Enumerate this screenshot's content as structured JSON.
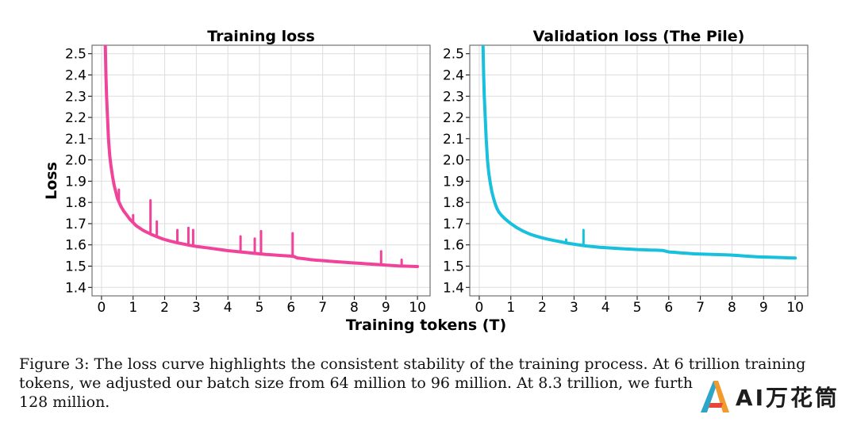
{
  "chart_data": [
    {
      "type": "line",
      "title": "Training loss",
      "ylabel": "Loss",
      "xlabel": "Training tokens (T)",
      "xlim": [
        -0.3,
        10.4
      ],
      "ylim": [
        1.36,
        2.54
      ],
      "xticks": [
        "0",
        "1",
        "2",
        "3",
        "4",
        "5",
        "6",
        "7",
        "8",
        "9",
        "10"
      ],
      "yticks": [
        "1.4",
        "1.5",
        "1.6",
        "1.7",
        "1.8",
        "1.9",
        "2.0",
        "2.1",
        "2.2",
        "2.3",
        "2.4",
        "2.5"
      ],
      "grid": true,
      "series": [
        {
          "color": "#f0449b",
          "x": [
            0.12,
            0.14,
            0.16,
            0.19,
            0.22,
            0.26,
            0.3,
            0.35,
            0.4,
            0.45,
            0.5,
            0.56,
            0.62,
            0.7,
            0.8,
            0.9,
            1.0,
            1.1,
            1.2,
            1.3,
            1.4,
            1.5,
            1.6,
            1.7,
            1.8,
            1.9,
            2.0,
            2.2,
            2.4,
            2.6,
            2.8,
            3.0,
            3.2,
            3.4,
            3.6,
            3.8,
            4.0,
            4.2,
            4.4,
            4.6,
            4.8,
            5.0,
            5.2,
            5.4,
            5.6,
            5.8,
            6.0,
            6.1,
            6.2,
            6.4,
            6.6,
            6.8,
            7.0,
            7.2,
            7.4,
            7.6,
            7.8,
            8.0,
            8.2,
            8.4,
            8.6,
            8.8,
            9.0,
            9.2,
            9.4,
            9.6,
            9.8,
            10.0
          ],
          "y": [
            2.54,
            2.4,
            2.3,
            2.2,
            2.1,
            2.02,
            1.97,
            1.92,
            1.88,
            1.85,
            1.82,
            1.8,
            1.78,
            1.76,
            1.74,
            1.72,
            1.705,
            1.69,
            1.68,
            1.67,
            1.662,
            1.655,
            1.648,
            1.642,
            1.636,
            1.63,
            1.625,
            1.617,
            1.61,
            1.604,
            1.598,
            1.593,
            1.589,
            1.585,
            1.581,
            1.577,
            1.573,
            1.57,
            1.567,
            1.564,
            1.561,
            1.558,
            1.555,
            1.553,
            1.551,
            1.549,
            1.547,
            1.545,
            1.538,
            1.535,
            1.531,
            1.528,
            1.526,
            1.523,
            1.521,
            1.519,
            1.517,
            1.515,
            1.513,
            1.511,
            1.509,
            1.507,
            1.505,
            1.503,
            1.501,
            1.5,
            1.499,
            1.498
          ]
        }
      ],
      "spikes": [
        {
          "x": 0.55,
          "y": 1.86
        },
        {
          "x": 1.0,
          "y": 1.74
        },
        {
          "x": 1.55,
          "y": 1.81
        },
        {
          "x": 1.75,
          "y": 1.71
        },
        {
          "x": 2.4,
          "y": 1.67
        },
        {
          "x": 2.75,
          "y": 1.68
        },
        {
          "x": 2.9,
          "y": 1.67
        },
        {
          "x": 4.4,
          "y": 1.64
        },
        {
          "x": 4.85,
          "y": 1.63
        },
        {
          "x": 5.05,
          "y": 1.665
        },
        {
          "x": 6.05,
          "y": 1.655
        },
        {
          "x": 8.85,
          "y": 1.57
        },
        {
          "x": 9.5,
          "y": 1.53
        }
      ]
    },
    {
      "type": "line",
      "title": "Validation loss (The Pile)",
      "xlim": [
        -0.3,
        10.4
      ],
      "ylim": [
        1.36,
        2.54
      ],
      "xticks": [
        "0",
        "1",
        "2",
        "3",
        "4",
        "5",
        "6",
        "7",
        "8",
        "9",
        "10"
      ],
      "yticks": [
        "1.4",
        "1.5",
        "1.6",
        "1.7",
        "1.8",
        "1.9",
        "2.0",
        "2.1",
        "2.2",
        "2.3",
        "2.4",
        "2.5"
      ],
      "grid": true,
      "series": [
        {
          "color": "#17c0dc",
          "x": [
            0.12,
            0.14,
            0.16,
            0.19,
            0.22,
            0.26,
            0.3,
            0.35,
            0.4,
            0.45,
            0.5,
            0.56,
            0.62,
            0.7,
            0.8,
            0.9,
            1.0,
            1.2,
            1.4,
            1.6,
            1.8,
            2.0,
            2.2,
            2.4,
            2.6,
            2.8,
            3.0,
            3.2,
            3.4,
            3.6,
            3.8,
            4.0,
            4.2,
            4.4,
            4.6,
            4.8,
            5.0,
            5.2,
            5.4,
            5.6,
            5.8,
            6.0,
            6.2,
            6.4,
            6.6,
            6.8,
            7.0,
            7.2,
            7.4,
            7.6,
            7.8,
            8.0,
            8.2,
            8.4,
            8.6,
            8.8,
            9.0,
            9.2,
            9.4,
            9.6,
            9.8,
            10.0
          ],
          "y": [
            2.54,
            2.4,
            2.3,
            2.2,
            2.1,
            2.0,
            1.94,
            1.89,
            1.85,
            1.82,
            1.795,
            1.772,
            1.755,
            1.74,
            1.725,
            1.712,
            1.7,
            1.68,
            1.664,
            1.651,
            1.641,
            1.633,
            1.626,
            1.62,
            1.614,
            1.608,
            1.603,
            1.599,
            1.595,
            1.592,
            1.589,
            1.587,
            1.585,
            1.583,
            1.581,
            1.58,
            1.578,
            1.577,
            1.576,
            1.575,
            1.574,
            1.567,
            1.565,
            1.562,
            1.56,
            1.558,
            1.557,
            1.556,
            1.555,
            1.554,
            1.553,
            1.552,
            1.55,
            1.548,
            1.546,
            1.544,
            1.543,
            1.542,
            1.541,
            1.54,
            1.539,
            1.538
          ]
        }
      ],
      "spikes": [
        {
          "x": 2.75,
          "y": 1.625
        },
        {
          "x": 3.3,
          "y": 1.67
        }
      ]
    }
  ],
  "caption": {
    "line1": "Figure 3: The loss curve highlights the consistent stability of the training process. At 6 trillion training",
    "line2": "tokens, we adjusted our batch size from 64 million to 96 million.  At 8.3 trillion, we furth",
    "line3": "128 million."
  },
  "watermark": {
    "text": "AI万花筒"
  }
}
